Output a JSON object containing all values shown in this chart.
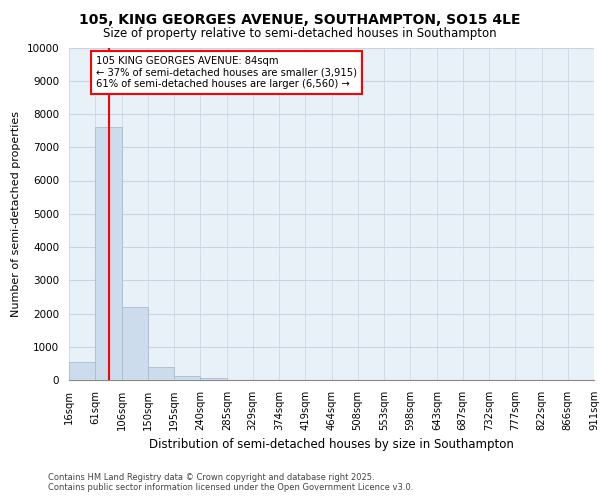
{
  "title_line1": "105, KING GEORGES AVENUE, SOUTHAMPTON, SO15 4LE",
  "title_line2": "Size of property relative to semi-detached houses in Southampton",
  "xlabel": "Distribution of semi-detached houses by size in Southampton",
  "ylabel": "Number of semi-detached properties",
  "annotation_text_line1": "105 KING GEORGES AVENUE: 84sqm",
  "annotation_text_line2": "← 37% of semi-detached houses are smaller (3,915)",
  "annotation_text_line3": "61% of semi-detached houses are larger (6,560) →",
  "bin_edges": [
    16,
    61,
    106,
    150,
    195,
    240,
    285,
    329,
    374,
    419,
    464,
    508,
    553,
    598,
    643,
    687,
    732,
    777,
    822,
    866,
    911
  ],
  "bin_labels": [
    "16sqm",
    "61sqm",
    "106sqm",
    "150sqm",
    "195sqm",
    "240sqm",
    "285sqm",
    "329sqm",
    "374sqm",
    "419sqm",
    "464sqm",
    "508sqm",
    "553sqm",
    "598sqm",
    "643sqm",
    "687sqm",
    "732sqm",
    "777sqm",
    "822sqm",
    "866sqm",
    "911sqm"
  ],
  "bar_heights": [
    530,
    7600,
    2200,
    380,
    130,
    60,
    0,
    0,
    0,
    0,
    0,
    0,
    0,
    0,
    0,
    0,
    0,
    0,
    0,
    0
  ],
  "bar_color": "#ccdcec",
  "bar_edge_color": "#aabccc",
  "red_line_x": 84,
  "ylim": [
    0,
    10000
  ],
  "yticks": [
    0,
    1000,
    2000,
    3000,
    4000,
    5000,
    6000,
    7000,
    8000,
    9000,
    10000
  ],
  "grid_color": "#c8d4e4",
  "background_color": "#e8f0f8",
  "footer_line1": "Contains HM Land Registry data © Crown copyright and database right 2025.",
  "footer_line2": "Contains public sector information licensed under the Open Government Licence v3.0."
}
